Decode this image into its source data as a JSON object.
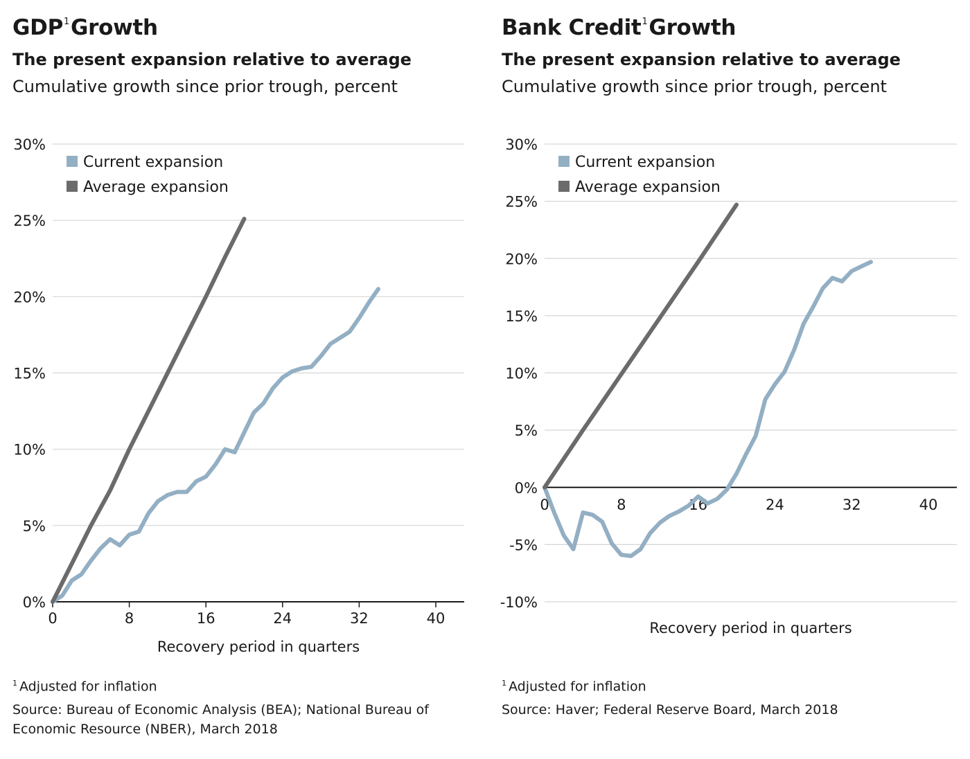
{
  "colors": {
    "current": "#93afc4",
    "average": "#6b6b6b",
    "grid": "#d6d6d6",
    "axis": "#1a1a1a"
  },
  "chart_data": [
    {
      "type": "line",
      "title_main": "GDP",
      "title_sup": "1",
      "title_rest": "Growth",
      "subtitle": "The present expansion relative to average",
      "subnote": "Cumulative growth since prior trough, percent",
      "xlabel": "Recovery period in quarters",
      "ylabel": "",
      "xlim": [
        0,
        43
      ],
      "ylim": [
        0,
        30
      ],
      "xticks": [
        0,
        8,
        16,
        24,
        32,
        40
      ],
      "yticks": [
        0,
        5,
        10,
        15,
        20,
        25,
        30
      ],
      "ytick_labels": [
        "0%",
        "5%",
        "10%",
        "15%",
        "20%",
        "25%",
        "30%"
      ],
      "grid": true,
      "legend": "top-left",
      "series": [
        {
          "name": "Current expansion",
          "color": "#93afc4",
          "x": [
            0,
            1,
            2,
            3,
            4,
            5,
            6,
            7,
            8,
            9,
            10,
            11,
            12,
            13,
            14,
            15,
            16,
            17,
            18,
            19,
            20,
            21,
            22,
            23,
            24,
            25,
            26,
            27,
            28,
            29,
            30,
            31,
            32,
            33,
            34
          ],
          "y": [
            0,
            0.4,
            1.4,
            1.8,
            2.7,
            3.5,
            4.1,
            3.7,
            4.4,
            4.6,
            5.8,
            6.6,
            7.0,
            7.2,
            7.2,
            7.9,
            8.2,
            9.0,
            10.0,
            9.8,
            11.1,
            12.4,
            13.0,
            14.0,
            14.7,
            15.1,
            15.3,
            15.4,
            16.1,
            16.9,
            17.3,
            17.7,
            18.6,
            19.6,
            20.5
          ]
        },
        {
          "name": "Average expansion",
          "color": "#6b6b6b",
          "x": [
            0,
            2,
            4,
            6,
            8,
            10,
            12,
            14,
            16,
            18,
            20
          ],
          "y": [
            0,
            2.5,
            5.0,
            7.3,
            10.0,
            12.5,
            15.0,
            17.5,
            20.0,
            22.6,
            25.1
          ]
        }
      ]
    },
    {
      "type": "line",
      "title_main": "Bank Credit",
      "title_sup": "1",
      "title_rest": "Growth",
      "subtitle": "The present expansion relative to average",
      "subnote": "Cumulative growth since prior trough, percent",
      "xlabel": "Recovery period in quarters",
      "ylabel": "",
      "xlim": [
        0,
        43
      ],
      "ylim": [
        -10,
        30
      ],
      "xticks": [
        0,
        8,
        16,
        24,
        32,
        40
      ],
      "yticks": [
        -10,
        -5,
        0,
        5,
        10,
        15,
        20,
        25,
        30
      ],
      "ytick_labels": [
        "-10%",
        "-5%",
        "0%",
        "5%",
        "10%",
        "15%",
        "20%",
        "25%",
        "30%"
      ],
      "grid": true,
      "legend": "top-left",
      "series": [
        {
          "name": "Current expansion",
          "color": "#93afc4",
          "x": [
            0,
            1,
            2,
            3,
            4,
            5,
            6,
            7,
            8,
            9,
            10,
            11,
            12,
            13,
            14,
            15,
            16,
            17,
            18,
            19,
            20,
            21,
            22,
            23,
            24,
            25,
            26,
            27,
            28,
            29,
            30,
            31,
            32,
            33,
            34
          ],
          "y": [
            0,
            -2.2,
            -4.2,
            -5.4,
            -2.2,
            -2.4,
            -3.0,
            -4.9,
            -5.9,
            -6.0,
            -5.4,
            -4.0,
            -3.1,
            -2.5,
            -2.1,
            -1.6,
            -0.8,
            -1.4,
            -1.0,
            -0.2,
            1.2,
            2.9,
            4.5,
            7.7,
            9.0,
            10.1,
            12.0,
            14.3,
            15.8,
            17.4,
            18.3,
            18.0,
            18.9,
            19.3,
            19.7
          ]
        },
        {
          "name": "Average expansion",
          "color": "#6b6b6b",
          "x": [
            0,
            4,
            8,
            12,
            16,
            20
          ],
          "y": [
            0,
            5.0,
            9.9,
            14.8,
            19.7,
            24.7
          ]
        }
      ]
    }
  ],
  "footnotes": [
    {
      "sup": "1",
      "text": "Adjusted for inflation",
      "source": "Source: Bureau of Economic Analysis (BEA); National Bureau of Economic Resource (NBER), March 2018"
    },
    {
      "sup": "1",
      "text": "Adjusted for inflation",
      "source": "Source: Haver; Federal Reserve Board, March 2018"
    }
  ]
}
